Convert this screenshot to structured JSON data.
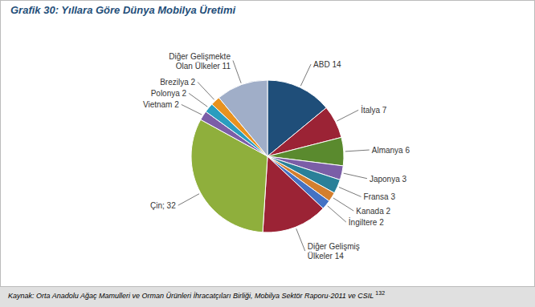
{
  "chart_data": {
    "type": "pie",
    "title": "Grafik 30: Yıllara Göre Dünya Mobilya Üretimi",
    "categories": [
      "ABD 14",
      "İtalya 7",
      "Almanya 6",
      "Japonya 3",
      "Fransa 3",
      "Kanada 2",
      "İngiltere 2",
      "Diğer Gelişmiş\nÜlkeler 14",
      "Çin; 32",
      "Vietnam 2",
      "Polonya 2",
      "Brezilya 2",
      "Diğer Gelişmekte\nOlan Ülkeler 11"
    ],
    "values": [
      14,
      7,
      6,
      3,
      3,
      2,
      2,
      14,
      32,
      2,
      2,
      2,
      11
    ],
    "colors": [
      "#1f4e79",
      "#9b2335",
      "#5a8a2e",
      "#7b5ea7",
      "#2a8099",
      "#d47f2e",
      "#4472c4",
      "#9b2335",
      "#8faf3c",
      "#7b5ea7",
      "#2a9dbf",
      "#e8921e",
      "#a0aec8"
    ],
    "annotations": [
      "Kaynak: Orta Anadolu Ağaç Mamulleri ve Orman Ürünleri İhracatçıları Birliği, Mobilya Sektör Raporu-2011 ve CSIL",
      "132"
    ]
  }
}
